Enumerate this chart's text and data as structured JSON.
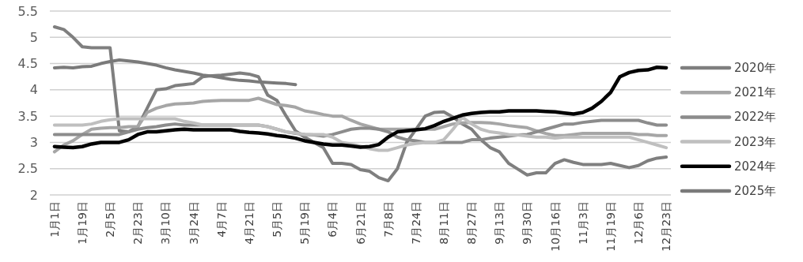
{
  "chart_data": {
    "type": "line",
    "categories": [
      "1月1日",
      null,
      null,
      "1月19日",
      null,
      null,
      "2月5日",
      null,
      null,
      "2月23日",
      null,
      null,
      "3月10日",
      null,
      null,
      "3月24日",
      null,
      null,
      "4月7日",
      null,
      null,
      "4月21日",
      null,
      null,
      "5月5日",
      null,
      null,
      "5月19日",
      null,
      null,
      "6月4日",
      null,
      null,
      "6月21日",
      null,
      null,
      "7月8日",
      null,
      null,
      "7月24日",
      null,
      null,
      "8月11日",
      null,
      null,
      "8月27日",
      null,
      null,
      "9月13日",
      null,
      null,
      "9月30日",
      null,
      null,
      "10月16日",
      null,
      null,
      "11月3日",
      null,
      null,
      "11月19日",
      null,
      null,
      "12月6日",
      null,
      null,
      "12月23日"
    ],
    "ylim": [
      2,
      5.5
    ],
    "yticks": [
      2,
      2.5,
      3,
      3.5,
      4,
      4.5,
      5,
      5.5
    ],
    "grid": "y",
    "legend": "right",
    "series": [
      {
        "name": "2020年",
        "color": "#7f7f7f",
        "values": [
          5.2,
          5.15,
          5.0,
          4.82,
          4.8,
          4.8,
          4.8,
          3.22,
          3.2,
          3.3,
          3.65,
          4.0,
          4.02,
          4.08,
          4.1,
          4.12,
          4.25,
          4.27,
          4.28,
          4.3,
          4.32,
          4.3,
          4.25,
          3.9,
          3.8,
          3.5,
          3.22,
          3.1,
          3.0,
          2.9,
          2.6,
          2.6,
          2.58,
          2.48,
          2.45,
          2.33,
          2.27,
          2.5,
          3.0,
          3.25,
          3.5,
          3.57,
          3.58,
          3.48,
          3.35,
          3.25,
          3.05,
          2.9,
          2.82,
          2.6,
          2.49,
          2.38,
          2.42,
          2.42,
          2.6,
          2.67,
          2.62,
          2.58,
          2.58,
          2.58,
          2.6,
          2.56,
          2.52,
          2.56,
          2.65,
          2.7,
          2.72
        ]
      },
      {
        "name": "2021年",
        "color": "#a6a6a6",
        "values": [
          2.82,
          2.95,
          3.03,
          3.15,
          3.25,
          3.27,
          3.28,
          3.28,
          3.3,
          3.3,
          3.57,
          3.65,
          3.7,
          3.73,
          3.74,
          3.75,
          3.78,
          3.79,
          3.8,
          3.8,
          3.8,
          3.8,
          3.84,
          3.78,
          3.72,
          3.7,
          3.67,
          3.6,
          3.57,
          3.53,
          3.5,
          3.5,
          3.42,
          3.35,
          3.3,
          3.25,
          3.25,
          3.25,
          3.25,
          3.25,
          3.25,
          3.25,
          3.3,
          3.35,
          3.37,
          3.38,
          3.38,
          3.37,
          3.35,
          3.32,
          3.3,
          3.28,
          3.22,
          3.17,
          3.13,
          3.13,
          3.15,
          3.17,
          3.17,
          3.17,
          3.17,
          3.17,
          3.17,
          3.15,
          3.15,
          3.13,
          3.13
        ]
      },
      {
        "name": "2022年",
        "color": "#8c8c8c",
        "values": [
          3.15,
          3.15,
          3.15,
          3.15,
          3.15,
          3.15,
          3.15,
          3.15,
          3.2,
          3.25,
          3.28,
          3.3,
          3.33,
          3.35,
          3.33,
          3.33,
          3.33,
          3.33,
          3.33,
          3.33,
          3.33,
          3.33,
          3.33,
          3.3,
          3.25,
          3.2,
          3.17,
          3.15,
          3.14,
          3.12,
          3.15,
          3.2,
          3.25,
          3.27,
          3.27,
          3.25,
          3.2,
          3.1,
          3.05,
          3.03,
          3.0,
          3.0,
          3.0,
          3.0,
          3.0,
          3.05,
          3.05,
          3.08,
          3.1,
          3.12,
          3.14,
          3.15,
          3.2,
          3.25,
          3.3,
          3.35,
          3.35,
          3.38,
          3.4,
          3.42,
          3.42,
          3.42,
          3.42,
          3.42,
          3.37,
          3.33,
          3.33
        ]
      },
      {
        "name": "2023年",
        "color": "#bfbfbf",
        "values": [
          3.33,
          3.33,
          3.33,
          3.33,
          3.35,
          3.4,
          3.43,
          3.45,
          3.45,
          3.45,
          3.45,
          3.45,
          3.45,
          3.45,
          3.4,
          3.37,
          3.33,
          3.33,
          3.33,
          3.33,
          3.33,
          3.33,
          3.33,
          3.3,
          3.25,
          3.2,
          3.18,
          3.15,
          3.15,
          3.15,
          3.1,
          3.0,
          2.97,
          2.93,
          2.88,
          2.85,
          2.85,
          2.9,
          2.95,
          2.98,
          3.0,
          3.0,
          3.05,
          3.25,
          3.48,
          3.35,
          3.25,
          3.2,
          3.18,
          3.15,
          3.14,
          3.12,
          3.1,
          3.1,
          3.08,
          3.1,
          3.1,
          3.1,
          3.1,
          3.1,
          3.1,
          3.1,
          3.1,
          3.05,
          3.0,
          2.95,
          2.9
        ]
      },
      {
        "name": "2024年",
        "color": "#000000",
        "values": [
          2.92,
          2.91,
          2.9,
          2.92,
          2.97,
          3.0,
          3.0,
          3.0,
          3.05,
          3.15,
          3.2,
          3.2,
          3.22,
          3.24,
          3.25,
          3.24,
          3.24,
          3.24,
          3.24,
          3.24,
          3.21,
          3.19,
          3.18,
          3.16,
          3.13,
          3.11,
          3.08,
          3.03,
          3.0,
          2.97,
          2.95,
          2.95,
          2.93,
          2.91,
          2.92,
          2.96,
          3.1,
          3.2,
          3.22,
          3.24,
          3.26,
          3.32,
          3.4,
          3.46,
          3.52,
          3.55,
          3.57,
          3.58,
          3.58,
          3.6,
          3.6,
          3.6,
          3.6,
          3.59,
          3.58,
          3.56,
          3.54,
          3.57,
          3.65,
          3.78,
          3.95,
          4.25,
          4.33,
          4.37,
          4.38,
          4.43,
          4.42
        ]
      },
      {
        "name": "2025年",
        "color": "#7a7a7a",
        "values": [
          4.42,
          4.43,
          4.42,
          4.44,
          4.45,
          4.5,
          4.54,
          4.57,
          4.55,
          4.53,
          4.5,
          4.47,
          4.42,
          4.38,
          4.35,
          4.32,
          4.28,
          4.26,
          4.23,
          4.2,
          4.18,
          4.17,
          4.15,
          4.14,
          4.13,
          4.12,
          4.1,
          null,
          null,
          null,
          null,
          null,
          null,
          null,
          null,
          null,
          null,
          null,
          null,
          null,
          null,
          null,
          null,
          null,
          null,
          null,
          null,
          null,
          null,
          null,
          null,
          null,
          null,
          null,
          null,
          null,
          null,
          null,
          null,
          null,
          null,
          null,
          null,
          null,
          null,
          null,
          null
        ]
      }
    ]
  }
}
